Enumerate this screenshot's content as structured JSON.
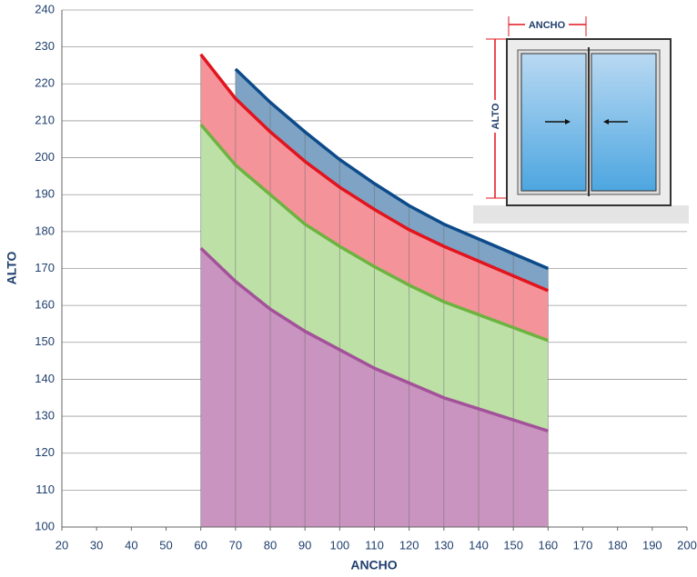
{
  "chart_data": {
    "type": "area",
    "x_label": "ANCHO",
    "y_label": "ALTO",
    "x": [
      60,
      70,
      80,
      90,
      100,
      110,
      120,
      130,
      140,
      150,
      160
    ],
    "series": [
      {
        "color": "#a3529a",
        "fill": "#c994bf",
        "values": [
          175.5,
          166.5,
          159,
          153,
          148,
          143,
          139,
          135,
          132,
          129,
          126
        ]
      },
      {
        "color": "#6cb33f",
        "fill": "#bde0a6",
        "values": [
          209,
          198,
          190,
          182,
          176,
          170.5,
          165.5,
          161,
          157.5,
          154,
          150.5
        ]
      },
      {
        "color": "#e2141d",
        "fill": "#f4939a",
        "values": [
          228,
          216,
          207,
          199,
          192,
          186,
          180.5,
          176,
          172,
          168,
          164
        ]
      },
      {
        "color": "#0c4a8a",
        "fill": "#7ea3c4",
        "values": [
          null,
          224,
          215,
          207,
          199.5,
          193,
          187,
          182,
          178,
          174,
          170
        ]
      }
    ],
    "xlim": [
      20,
      200
    ],
    "ylim": [
      100,
      240
    ],
    "xticks": [
      20,
      30,
      40,
      50,
      60,
      70,
      80,
      90,
      100,
      110,
      120,
      130,
      140,
      150,
      160,
      170,
      180,
      190,
      200
    ],
    "yticks": [
      100,
      110,
      120,
      130,
      140,
      150,
      160,
      170,
      180,
      190,
      200,
      210,
      220,
      230,
      240
    ],
    "grid": true,
    "inset": {
      "width_label": "ANCHO",
      "height_label": "ALTO"
    }
  }
}
